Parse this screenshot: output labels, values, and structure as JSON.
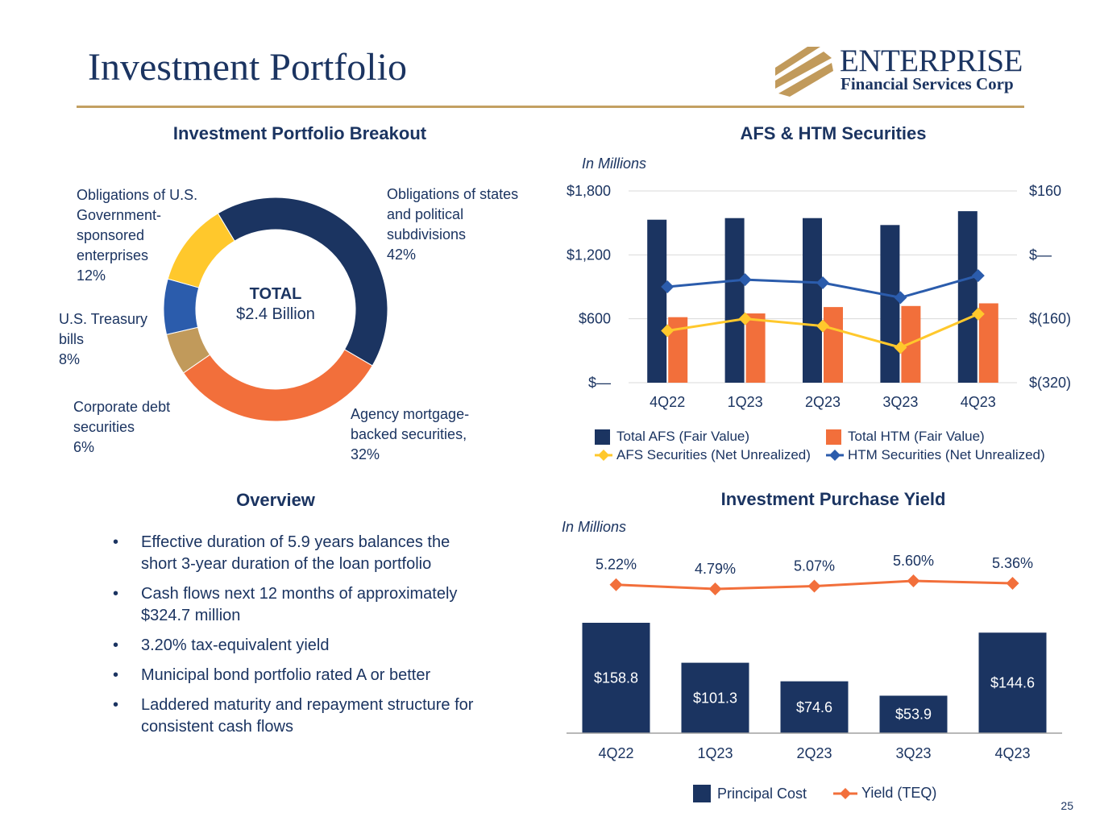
{
  "page": {
    "title": "Investment Portfolio",
    "page_number": "25",
    "logo": {
      "name": "ENTERPRISE",
      "subtitle": "Financial Services Corp",
      "mark_icon": "logo-stripes-icon"
    }
  },
  "colors": {
    "navy": "#1b3461",
    "orange": "#f26f3b",
    "gold": "#c3a062",
    "yellow": "#ffc82c",
    "blue": "#2b5cac",
    "tan": "#c19a5b",
    "gray": "#a0a0a0"
  },
  "breakout": {
    "title": "Investment Portfolio Breakout",
    "total_label": "TOTAL",
    "total_value": "$2.4 Billion"
  },
  "overview": {
    "title": "Overview",
    "bullets": [
      "Effective duration of 5.9 years balances the short 3-year duration of the loan portfolio",
      "Cash flows next 12 months of approximately $324.7 million",
      "3.20% tax-equivalent yield",
      "Municipal bond portfolio rated A or better",
      "Laddered maturity and repayment structure for consistent cash flows"
    ]
  },
  "afs_htm": {
    "title": "AFS & HTM Securities",
    "units": "In Millions"
  },
  "yield": {
    "title": "Investment Purchase Yield",
    "units": "In Millions"
  },
  "chart_data": [
    {
      "type": "pie",
      "title": "Investment Portfolio Breakout",
      "slices": [
        {
          "label": "Obligations of states and political subdivisions",
          "percent": "42%",
          "value": 42,
          "color": "#1b3461"
        },
        {
          "label": "Agency mortgage-backed securities,",
          "percent": "32%",
          "value": 32,
          "color": "#f26f3b"
        },
        {
          "label": "Corporate debt securities",
          "percent": "6%",
          "value": 6,
          "color": "#c19a5b"
        },
        {
          "label": "U.S. Treasury bills",
          "percent": "8%",
          "value": 8,
          "color": "#2b5cac"
        },
        {
          "label": "Obligations of U.S. Government-sponsored enterprises",
          "percent": "12%",
          "value": 12,
          "color": "#ffc82c"
        }
      ]
    },
    {
      "type": "bar",
      "title": "AFS & HTM Securities",
      "categories": [
        "4Q22",
        "1Q23",
        "2Q23",
        "3Q23",
        "4Q23"
      ],
      "y_left": {
        "ylim": [
          0,
          1800
        ],
        "ticks": [
          0,
          600,
          1200,
          1800
        ],
        "tick_labels": [
          "$—",
          "$600",
          "$1,200",
          "$1,800"
        ]
      },
      "y_right": {
        "ylim": [
          -320,
          160
        ],
        "ticks": [
          -320,
          -160,
          0,
          160
        ],
        "tick_labels": [
          "$(320)",
          "$(160)",
          "$—",
          "$160"
        ]
      },
      "series": [
        {
          "name": "Total AFS (Fair Value)",
          "kind": "bar",
          "axis": "left",
          "color": "#1b3461",
          "values": [
            1530,
            1545,
            1545,
            1480,
            1610
          ]
        },
        {
          "name": "Total HTM (Fair Value)",
          "kind": "bar",
          "axis": "left",
          "color": "#f26f3b",
          "values": [
            615,
            650,
            710,
            720,
            745
          ]
        },
        {
          "name": "AFS Securities (Net Unrealized)",
          "kind": "line",
          "axis": "right",
          "color": "#ffc82c",
          "values": [
            -190,
            -160,
            -178,
            -232,
            -148
          ]
        },
        {
          "name": "HTM Securities (Net Unrealized)",
          "kind": "line",
          "axis": "right",
          "color": "#2b5cac",
          "values": [
            -80,
            -62,
            -70,
            -107,
            -52
          ]
        }
      ]
    },
    {
      "type": "bar",
      "title": "Investment Purchase Yield",
      "categories": [
        "4Q22",
        "1Q23",
        "2Q23",
        "3Q23",
        "4Q23"
      ],
      "series": [
        {
          "name": "Principal Cost",
          "kind": "bar",
          "color": "#1b3461",
          "values": [
            158.8,
            101.3,
            74.6,
            53.9,
            144.6
          ],
          "labels": [
            "$158.8",
            "$101.3",
            "$74.6",
            "$53.9",
            "$144.6"
          ]
        },
        {
          "name": "Yield (TEQ)",
          "kind": "line",
          "color": "#f26f3b",
          "values": [
            5.22,
            4.79,
            5.07,
            5.6,
            5.36
          ],
          "labels": [
            "5.22%",
            "4.79%",
            "5.07%",
            "5.60%",
            "5.36%"
          ]
        }
      ]
    }
  ]
}
